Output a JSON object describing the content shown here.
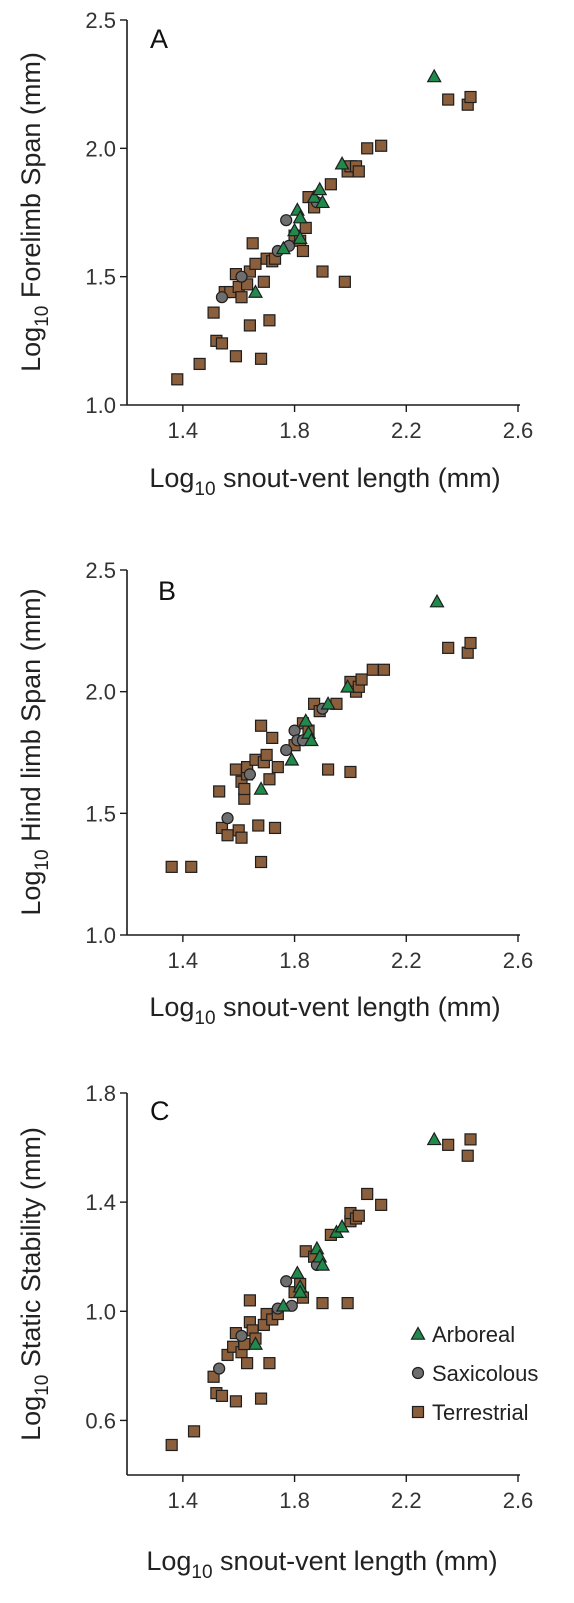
{
  "colors": {
    "arboreal": "#1f8a4c",
    "saxicolous": "#6e6e6e",
    "terrestrial": "#8b5e3c",
    "outline": "#1e1e1e"
  },
  "legend": {
    "items": [
      {
        "key": "arboreal",
        "label": "Arboreal",
        "shape": "triangle"
      },
      {
        "key": "saxicolous",
        "label": "Saxicolous",
        "shape": "circle"
      },
      {
        "key": "terrestrial",
        "label": "Terrestrial",
        "shape": "square"
      }
    ]
  },
  "chart_data": [
    {
      "type": "scatter",
      "panel_label": "A",
      "xlabel_main": "Log",
      "xlabel_sub": "10",
      "xlabel_rest": " snout-vent length (mm)",
      "ylabel_main": "Log",
      "ylabel_sub": "10",
      "ylabel_rest": " Forelimb Span (mm)",
      "xlim": [
        1.2,
        2.6
      ],
      "ylim": [
        1.0,
        2.5
      ],
      "xticks": [
        "1.4",
        "1.8",
        "2.2",
        "2.6"
      ],
      "yticks": [
        "1.0",
        "1.5",
        "2.0",
        "2.5"
      ],
      "series": [
        {
          "key": "arboreal",
          "name": "Arboreal",
          "points": [
            [
              1.66,
              1.44
            ],
            [
              1.76,
              1.61
            ],
            [
              1.8,
              1.68
            ],
            [
              1.81,
              1.76
            ],
            [
              1.82,
              1.73
            ],
            [
              1.82,
              1.65
            ],
            [
              1.87,
              1.81
            ],
            [
              1.89,
              1.84
            ],
            [
              1.9,
              1.79
            ],
            [
              1.97,
              1.94
            ],
            [
              2.3,
              2.28
            ]
          ]
        },
        {
          "key": "saxicolous",
          "name": "Saxicolous",
          "points": [
            [
              1.54,
              1.42
            ],
            [
              1.61,
              1.5
            ],
            [
              1.74,
              1.6
            ],
            [
              1.77,
              1.72
            ],
            [
              1.78,
              1.62
            ],
            [
              1.88,
              1.79
            ]
          ]
        },
        {
          "key": "terrestrial",
          "name": "Terrestrial",
          "points": [
            [
              1.38,
              1.1
            ],
            [
              1.46,
              1.16
            ],
            [
              1.51,
              1.36
            ],
            [
              1.52,
              1.25
            ],
            [
              1.54,
              1.24
            ],
            [
              1.55,
              1.44
            ],
            [
              1.57,
              1.44
            ],
            [
              1.59,
              1.19
            ],
            [
              1.59,
              1.51
            ],
            [
              1.6,
              1.46
            ],
            [
              1.61,
              1.42
            ],
            [
              1.63,
              1.47
            ],
            [
              1.64,
              1.31
            ],
            [
              1.64,
              1.52
            ],
            [
              1.65,
              1.63
            ],
            [
              1.66,
              1.55
            ],
            [
              1.68,
              1.18
            ],
            [
              1.69,
              1.48
            ],
            [
              1.7,
              1.57
            ],
            [
              1.71,
              1.33
            ],
            [
              1.72,
              1.56
            ],
            [
              1.73,
              1.57
            ],
            [
              1.8,
              1.66
            ],
            [
              1.82,
              1.64
            ],
            [
              1.83,
              1.6
            ],
            [
              1.84,
              1.69
            ],
            [
              1.85,
              1.81
            ],
            [
              1.87,
              1.77
            ],
            [
              1.9,
              1.52
            ],
            [
              1.93,
              1.86
            ],
            [
              1.98,
              1.48
            ],
            [
              1.99,
              1.91
            ],
            [
              2.0,
              1.93
            ],
            [
              2.02,
              1.93
            ],
            [
              2.03,
              1.91
            ],
            [
              2.06,
              2.0
            ],
            [
              2.11,
              2.01
            ],
            [
              2.35,
              2.19
            ],
            [
              2.42,
              2.17
            ],
            [
              2.43,
              2.2
            ]
          ]
        }
      ]
    },
    {
      "type": "scatter",
      "panel_label": "B",
      "xlabel_main": "Log",
      "xlabel_sub": "10",
      "xlabel_rest": " snout-vent length (mm)",
      "ylabel_main": "Log",
      "ylabel_sub": "10",
      "ylabel_rest": " Hind limb Span (mm)",
      "xlim": [
        1.2,
        2.6
      ],
      "ylim": [
        1.0,
        2.5
      ],
      "xticks": [
        "1.4",
        "1.8",
        "2.2",
        "2.6"
      ],
      "yticks": [
        "1.0",
        "1.5",
        "2.0",
        "2.5"
      ],
      "series": [
        {
          "key": "arboreal",
          "name": "Arboreal",
          "points": [
            [
              1.68,
              1.6
            ],
            [
              1.79,
              1.72
            ],
            [
              1.84,
              1.88
            ],
            [
              1.85,
              1.83
            ],
            [
              1.86,
              1.8
            ],
            [
              1.92,
              1.95
            ],
            [
              1.99,
              2.02
            ],
            [
              2.31,
              2.37
            ]
          ]
        },
        {
          "key": "saxicolous",
          "name": "Saxicolous",
          "points": [
            [
              1.56,
              1.48
            ],
            [
              1.64,
              1.66
            ],
            [
              1.77,
              1.76
            ],
            [
              1.8,
              1.84
            ],
            [
              1.81,
              1.8
            ],
            [
              1.83,
              1.8
            ],
            [
              1.9,
              1.93
            ]
          ]
        },
        {
          "key": "terrestrial",
          "name": "Terrestrial",
          "points": [
            [
              1.36,
              1.28
            ],
            [
              1.43,
              1.28
            ],
            [
              1.53,
              1.59
            ],
            [
              1.54,
              1.44
            ],
            [
              1.56,
              1.41
            ],
            [
              1.59,
              1.68
            ],
            [
              1.6,
              1.43
            ],
            [
              1.61,
              1.63
            ],
            [
              1.61,
              1.4
            ],
            [
              1.62,
              1.56
            ],
            [
              1.62,
              1.6
            ],
            [
              1.63,
              1.66
            ],
            [
              1.63,
              1.69
            ],
            [
              1.66,
              1.72
            ],
            [
              1.67,
              1.45
            ],
            [
              1.68,
              1.86
            ],
            [
              1.68,
              1.3
            ],
            [
              1.69,
              1.71
            ],
            [
              1.7,
              1.74
            ],
            [
              1.71,
              1.64
            ],
            [
              1.72,
              1.81
            ],
            [
              1.73,
              1.44
            ],
            [
              1.74,
              1.69
            ],
            [
              1.8,
              1.78
            ],
            [
              1.83,
              1.87
            ],
            [
              1.85,
              1.84
            ],
            [
              1.87,
              1.95
            ],
            [
              1.89,
              1.92
            ],
            [
              1.92,
              1.68
            ],
            [
              1.95,
              1.95
            ],
            [
              2.0,
              1.67
            ],
            [
              2.0,
              2.04
            ],
            [
              2.02,
              2.0
            ],
            [
              2.03,
              2.02
            ],
            [
              2.04,
              2.05
            ],
            [
              2.08,
              2.09
            ],
            [
              2.12,
              2.09
            ],
            [
              2.35,
              2.18
            ],
            [
              2.42,
              2.16
            ],
            [
              2.43,
              2.2
            ]
          ]
        }
      ]
    },
    {
      "type": "scatter",
      "panel_label": "C",
      "xlabel_main": "Log",
      "xlabel_sub": "10",
      "xlabel_rest": " snout-vent length (mm)",
      "ylabel_main": "Log",
      "ylabel_sub": "10",
      "ylabel_rest": " Static Stability (mm)",
      "xlim": [
        1.2,
        2.6
      ],
      "ylim": [
        0.4,
        1.8
      ],
      "xticks": [
        "1.4",
        "1.8",
        "2.2",
        "2.6"
      ],
      "yticks": [
        "0.6",
        "1.0",
        "1.4",
        "1.8"
      ],
      "series": [
        {
          "key": "arboreal",
          "name": "Arboreal",
          "points": [
            [
              1.66,
              0.88
            ],
            [
              1.76,
              1.02
            ],
            [
              1.81,
              1.14
            ],
            [
              1.82,
              1.09
            ],
            [
              1.82,
              1.07
            ],
            [
              1.88,
              1.23
            ],
            [
              1.89,
              1.2
            ],
            [
              1.9,
              1.17
            ],
            [
              1.95,
              1.29
            ],
            [
              1.97,
              1.31
            ],
            [
              2.3,
              1.63
            ]
          ]
        },
        {
          "key": "saxicolous",
          "name": "Saxicolous",
          "points": [
            [
              1.53,
              0.79
            ],
            [
              1.61,
              0.91
            ],
            [
              1.74,
              1.01
            ],
            [
              1.77,
              1.11
            ],
            [
              1.79,
              1.02
            ],
            [
              1.88,
              1.17
            ]
          ]
        },
        {
          "key": "terrestrial",
          "name": "Terrestrial",
          "points": [
            [
              1.36,
              0.51
            ],
            [
              1.44,
              0.56
            ],
            [
              1.51,
              0.76
            ],
            [
              1.52,
              0.7
            ],
            [
              1.54,
              0.69
            ],
            [
              1.56,
              0.84
            ],
            [
              1.58,
              0.87
            ],
            [
              1.59,
              0.67
            ],
            [
              1.59,
              0.92
            ],
            [
              1.61,
              0.85
            ],
            [
              1.62,
              0.88
            ],
            [
              1.63,
              0.81
            ],
            [
              1.64,
              0.96
            ],
            [
              1.64,
              1.04
            ],
            [
              1.65,
              0.93
            ],
            [
              1.66,
              0.9
            ],
            [
              1.68,
              0.68
            ],
            [
              1.69,
              0.95
            ],
            [
              1.7,
              0.99
            ],
            [
              1.71,
              0.81
            ],
            [
              1.72,
              0.97
            ],
            [
              1.74,
              0.99
            ],
            [
              1.8,
              1.07
            ],
            [
              1.82,
              1.1
            ],
            [
              1.83,
              1.05
            ],
            [
              1.84,
              1.22
            ],
            [
              1.87,
              1.2
            ],
            [
              1.9,
              1.03
            ],
            [
              1.93,
              1.28
            ],
            [
              1.99,
              1.03
            ],
            [
              2.0,
              1.33
            ],
            [
              2.0,
              1.36
            ],
            [
              2.02,
              1.34
            ],
            [
              2.03,
              1.35
            ],
            [
              2.06,
              1.43
            ],
            [
              2.11,
              1.39
            ],
            [
              2.35,
              1.61
            ],
            [
              2.42,
              1.57
            ],
            [
              2.43,
              1.63
            ]
          ]
        }
      ]
    }
  ]
}
